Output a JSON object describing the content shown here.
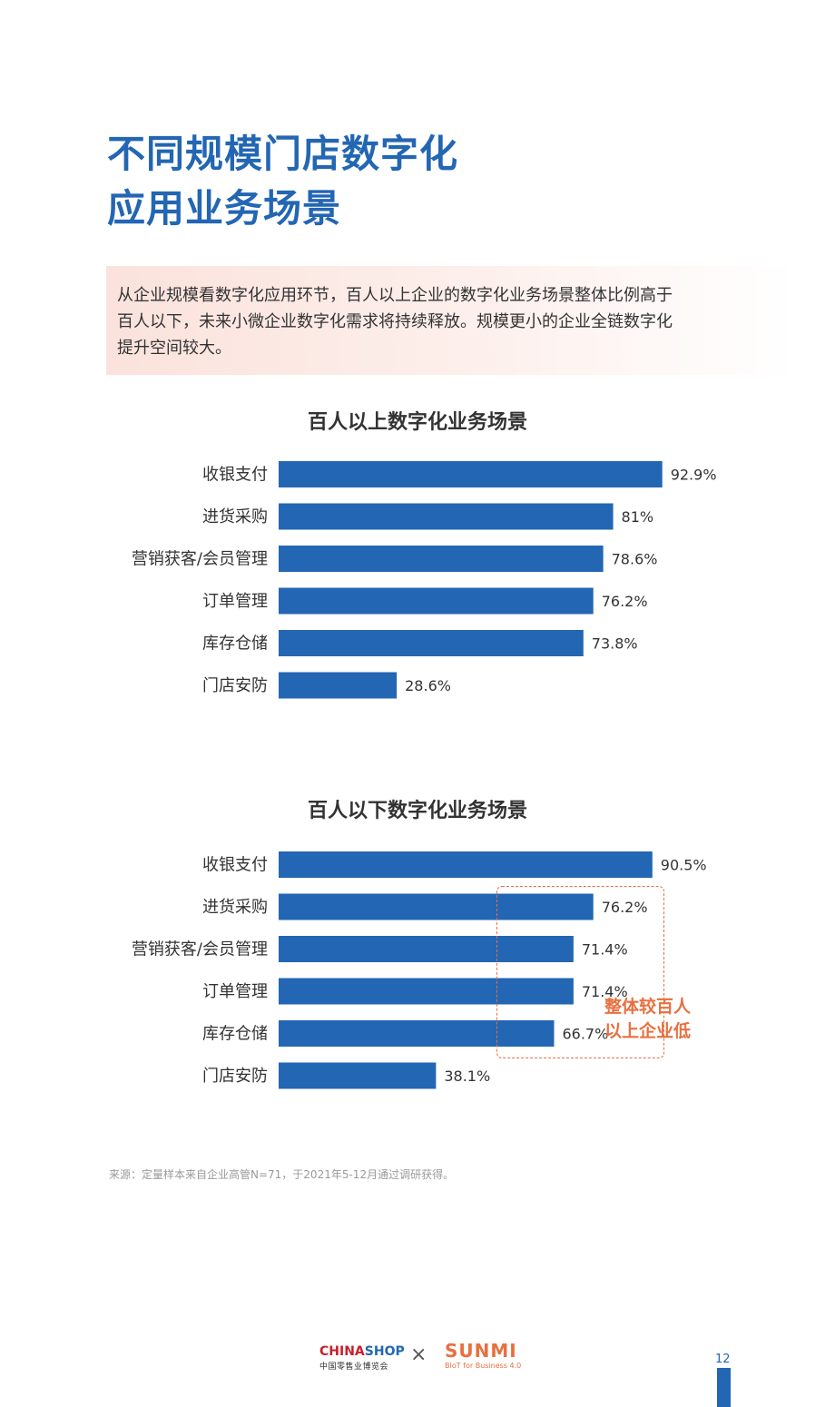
{
  "page": {
    "title_lines": [
      "不同规模门店数字化",
      "应用业务场景"
    ],
    "intro_lines": [
      "从企业规模看数字化应用环节，百人以上企业的数字化业务场景整体比例高于",
      "百人以下，未来小微企业数字化需求将持续释放。规模更小的企业全链数字化",
      "提升空间较大。"
    ],
    "callout_lines": [
      "整体较百人",
      "以上企业低"
    ],
    "source": "来源：定量样本来自企业高管N=71，于2021年5-12月通过调研获得。",
    "footer": {
      "chinashop_left": "CHINA",
      "chinashop_right": "SHOP",
      "chinashop_sub": "中国零售业博览会",
      "separator": "×",
      "sunmi": "SUNMI",
      "sunmi_sub": "BIoT for Business 4.0"
    },
    "page_number": "12",
    "colors": {
      "bar": "#2366b3",
      "title": "#2366b3",
      "accent": "#e8703f"
    }
  },
  "chart_data": [
    {
      "type": "bar",
      "orientation": "horizontal",
      "title": "百人以上数字化业务场景",
      "categories": [
        "收银支付",
        "进货采购",
        "营销获客/会员管理",
        "订单管理",
        "库存仓储",
        "门店安防"
      ],
      "values": [
        92.9,
        81,
        78.6,
        76.2,
        73.8,
        28.6
      ],
      "value_labels": [
        "92.9%",
        "81%",
        "78.6%",
        "76.2%",
        "73.8%",
        "28.6%"
      ],
      "unit": "%"
    },
    {
      "type": "bar",
      "orientation": "horizontal",
      "title": "百人以下数字化业务场景",
      "categories": [
        "收银支付",
        "进货采购",
        "营销获客/会员管理",
        "订单管理",
        "库存仓储",
        "门店安防"
      ],
      "values": [
        90.5,
        76.2,
        71.4,
        71.4,
        66.7,
        38.1
      ],
      "value_labels": [
        "90.5%",
        "76.2%",
        "71.4%",
        "71.4%",
        "66.7%",
        "38.1%"
      ],
      "unit": "%"
    }
  ]
}
